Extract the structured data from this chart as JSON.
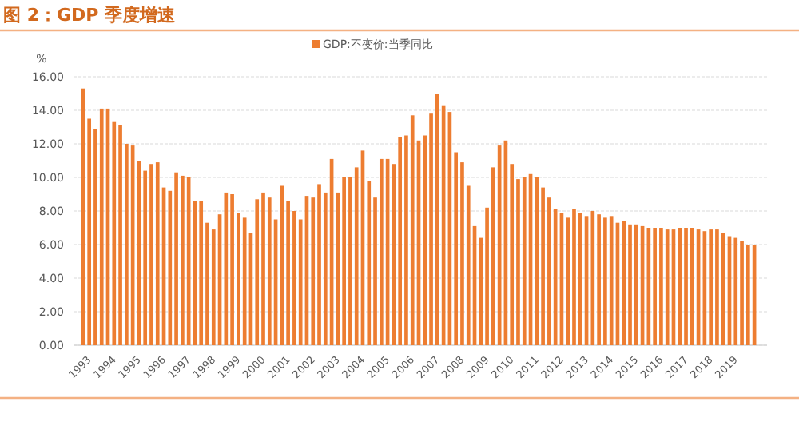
{
  "chart_data": {
    "type": "bar",
    "title": "图 2：GDP 季度增速",
    "ylabel": "%",
    "categories": [
      "1993",
      null,
      null,
      null,
      "1994",
      null,
      null,
      null,
      "1995",
      null,
      null,
      null,
      "1996",
      null,
      null,
      null,
      "1997",
      null,
      null,
      null,
      "1998",
      null,
      null,
      null,
      "1999",
      null,
      null,
      null,
      "2000",
      null,
      null,
      null,
      "2001",
      null,
      null,
      null,
      "2002",
      null,
      null,
      null,
      "2003",
      null,
      null,
      null,
      "2004",
      null,
      null,
      null,
      "2005",
      null,
      null,
      null,
      "2006",
      null,
      null,
      null,
      "2007",
      null,
      null,
      null,
      "2008",
      null,
      null,
      null,
      "2009",
      null,
      null,
      null,
      "2010",
      null,
      null,
      null,
      "2011",
      null,
      null,
      null,
      "2012",
      null,
      null,
      null,
      "2013",
      null,
      null,
      null,
      "2014",
      null,
      null,
      null,
      "2015",
      null,
      null,
      null,
      "2016",
      null,
      null,
      null,
      "2017",
      null,
      null,
      null,
      "2018",
      null,
      null,
      null,
      "2019",
      null,
      null,
      null,
      null
    ],
    "series": [
      {
        "name": "GDP:不变价:当季同比",
        "color": "#ed7d31",
        "values": [
          15.3,
          13.5,
          12.9,
          14.1,
          14.1,
          13.3,
          13.1,
          12.0,
          11.9,
          11.0,
          10.4,
          10.8,
          10.9,
          9.4,
          9.2,
          10.3,
          10.1,
          10.0,
          8.6,
          8.6,
          7.3,
          6.9,
          7.8,
          9.1,
          9.0,
          7.9,
          7.6,
          6.7,
          8.7,
          9.1,
          8.8,
          7.5,
          9.5,
          8.6,
          8.0,
          7.5,
          8.9,
          8.8,
          9.6,
          9.1,
          11.1,
          9.1,
          10.0,
          10.0,
          10.6,
          11.6,
          9.8,
          8.8,
          11.1,
          11.1,
          10.8,
          12.4,
          12.5,
          13.7,
          12.2,
          12.5,
          13.8,
          15.0,
          14.3,
          13.9,
          11.5,
          10.9,
          9.5,
          7.1,
          6.4,
          8.2,
          10.6,
          11.9,
          12.2,
          10.8,
          9.9,
          10.0,
          10.2,
          10.0,
          9.4,
          8.8,
          8.1,
          7.9,
          7.6,
          8.1,
          7.9,
          7.7,
          8.0,
          7.8,
          7.6,
          7.7,
          7.3,
          7.4,
          7.2,
          7.2,
          7.1,
          7.0,
          7.0,
          7.0,
          6.9,
          6.9,
          7.0,
          7.0,
          7.0,
          6.9,
          6.8,
          6.9,
          6.9,
          6.7,
          6.5,
          6.4,
          6.2,
          6.0,
          6.0
        ]
      }
    ],
    "ylim": [
      0,
      16
    ],
    "yticks": [
      {
        "value": 0,
        "label": "0.00"
      },
      {
        "value": 2,
        "label": "2.00"
      },
      {
        "value": 4,
        "label": "4.00"
      },
      {
        "value": 6,
        "label": "6.00"
      },
      {
        "value": 8,
        "label": "8.00"
      },
      {
        "value": 10,
        "label": "10.00"
      },
      {
        "value": 12,
        "label": "12.00"
      },
      {
        "value": 14,
        "label": "14.00"
      },
      {
        "value": 16,
        "label": "16.00"
      }
    ],
    "grid": "y",
    "legend": "top"
  }
}
